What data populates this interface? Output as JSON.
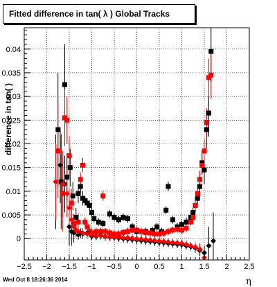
{
  "title": "Fitted difference in tan( λ )  Global Tracks",
  "footer": "Wed Oct  8 18:26:36 2014",
  "chart_data": {
    "type": "scatter",
    "xlabel": "η",
    "ylabel": "difference in tan( )",
    "xlim": [
      -2.5,
      2.5
    ],
    "ylim": [
      -0.0045,
      0.0445
    ],
    "xticks": [
      -2.5,
      -2,
      -1.5,
      -1,
      -0.5,
      0,
      0.5,
      1,
      1.5,
      2,
      2.5
    ],
    "xtick_labels": [
      "−2.5",
      "−2",
      "−1.5",
      "−1",
      "−0.5",
      "0",
      "0.5",
      "1",
      "1.5",
      "2",
      "2.5"
    ],
    "yticks": [
      0,
      0.005,
      0.01,
      0.015,
      0.02,
      0.025,
      0.03,
      0.035,
      0.04
    ],
    "ytick_labels": [
      "0",
      "0.005",
      "0.01",
      "0.015",
      "0.02",
      "0.025",
      "0.03",
      "0.035",
      "0.04"
    ],
    "grid": true,
    "colors": {
      "black": "#000000",
      "red": "#ff0000"
    },
    "series": [
      {
        "marker": "square",
        "color": "#000000",
        "points": [
          [
            -1.75,
            0.023,
            0.012
          ],
          [
            -1.68,
            0.012,
            0.01
          ],
          [
            -1.6,
            0.0325,
            0.0085
          ],
          [
            -1.55,
            0.013,
            0.005
          ],
          [
            -1.48,
            0.015,
            0.004
          ],
          [
            -1.42,
            0.009,
            0.003
          ],
          [
            -1.35,
            0.0045,
            0.002
          ],
          [
            -1.3,
            0.0095,
            0.002
          ],
          [
            -1.25,
            0.011,
            0.0015
          ],
          [
            -1.2,
            0.0085,
            0.0015
          ],
          [
            -1.15,
            0.008,
            0.001
          ],
          [
            -1.1,
            0.0075,
            0.001
          ],
          [
            -1.05,
            0.007,
            0.001
          ],
          [
            -1.0,
            0.0055,
            0.001
          ],
          [
            -0.95,
            0.0042,
            0.0008
          ],
          [
            -0.85,
            0.0035,
            0.0008
          ],
          [
            -0.75,
            0.0032,
            0.0008
          ],
          [
            -0.6,
            0.0052,
            0.0008
          ],
          [
            -0.5,
            0.0045,
            0.0008
          ],
          [
            -0.4,
            0.004,
            0.0008
          ],
          [
            -0.3,
            0.0045,
            0.0008
          ],
          [
            -0.2,
            0.0042,
            0.0008
          ],
          [
            -0.1,
            0.0025,
            0.0008
          ],
          [
            0.0,
            0.0015,
            0.0008
          ],
          [
            0.1,
            0.0015,
            0.0008
          ],
          [
            0.2,
            0.0015,
            0.0008
          ],
          [
            0.35,
            0.0017,
            0.0008
          ],
          [
            0.45,
            0.0025,
            0.0008
          ],
          [
            0.55,
            0.0015,
            0.0008
          ],
          [
            0.65,
            0.006,
            0.0008
          ],
          [
            0.7,
            0.011,
            0.001
          ],
          [
            0.8,
            0.004,
            0.0008
          ],
          [
            0.9,
            0.0025,
            0.0008
          ],
          [
            1.0,
            0.003,
            0.0008
          ],
          [
            1.1,
            0.0035,
            0.001
          ],
          [
            1.2,
            0.0045,
            0.001
          ],
          [
            1.25,
            0.0055,
            0.001
          ],
          [
            1.3,
            0.007,
            0.0015
          ],
          [
            1.35,
            0.0085,
            0.0015
          ],
          [
            1.4,
            0.011,
            0.002
          ],
          [
            1.45,
            0.016,
            0.0025
          ],
          [
            1.5,
            0.0145,
            0.003
          ],
          [
            1.55,
            0.023,
            0.004
          ],
          [
            1.6,
            0.0265,
            0.005
          ],
          [
            1.65,
            0.0395,
            0.0065
          ]
        ]
      },
      {
        "marker": "square",
        "color": "#ff0000",
        "points": [
          [
            -1.75,
            0.0185,
            0.01
          ],
          [
            -1.65,
            0.0095,
            0.008
          ],
          [
            -1.6,
            0.0255,
            0.006
          ],
          [
            -1.55,
            0.025,
            0.005
          ],
          [
            -1.5,
            0.0175,
            0.004
          ],
          [
            -1.45,
            0.0075,
            0.003
          ],
          [
            -1.4,
            0.0032,
            0.002
          ],
          [
            -1.3,
            0.0035,
            0.002
          ],
          [
            -1.25,
            0.0125,
            0.0015
          ],
          [
            -1.2,
            0.0155,
            0.0015
          ],
          [
            -1.15,
            0.0035,
            0.001
          ],
          [
            -1.1,
            0.0025,
            0.001
          ],
          [
            -1.05,
            0.0015,
            0.001
          ],
          [
            -1.0,
            0.0012,
            0.001
          ],
          [
            -0.9,
            0.0015,
            0.0008
          ],
          [
            -0.8,
            0.0015,
            0.0008
          ],
          [
            -0.75,
            0.009,
            0.001
          ],
          [
            -0.7,
            0.0015,
            0.0008
          ],
          [
            -0.6,
            0.0012,
            0.0008
          ],
          [
            -0.5,
            0.001,
            0.0008
          ],
          [
            -0.4,
            0.001,
            0.0008
          ],
          [
            -0.3,
            0.0013,
            0.0008
          ],
          [
            -0.2,
            0.0015,
            0.0008
          ],
          [
            -0.1,
            0.0018,
            0.0008
          ],
          [
            0.0,
            0.0018,
            0.0008
          ],
          [
            0.1,
            0.0015,
            0.0008
          ],
          [
            0.2,
            0.0013,
            0.0008
          ],
          [
            0.3,
            0.0012,
            0.0008
          ],
          [
            0.4,
            0.001,
            0.0008
          ],
          [
            0.5,
            0.001,
            0.0008
          ],
          [
            0.6,
            0.0012,
            0.0008
          ],
          [
            0.7,
            0.0015,
            0.0008
          ],
          [
            0.8,
            0.0018,
            0.0008
          ],
          [
            0.9,
            0.002,
            0.0008
          ],
          [
            1.0,
            0.0018,
            0.0008
          ],
          [
            1.1,
            0.0022,
            0.0008
          ],
          [
            1.2,
            0.0035,
            0.0008
          ],
          [
            1.25,
            0.0045,
            0.001
          ],
          [
            1.3,
            0.007,
            0.001
          ],
          [
            1.35,
            0.0095,
            0.0015
          ],
          [
            1.4,
            0.0125,
            0.0018
          ],
          [
            1.45,
            0.0155,
            0.002
          ],
          [
            1.5,
            0.0185,
            0.0025
          ],
          [
            1.55,
            0.0245,
            0.003
          ],
          [
            1.6,
            0.034,
            0.004
          ],
          [
            1.65,
            0.0345,
            0.005
          ]
        ]
      },
      {
        "marker": "diamond",
        "color": "#000000",
        "points": [
          [
            -1.8,
            0.012,
            0.01
          ],
          [
            -1.7,
            0.0155,
            0.008
          ],
          [
            -1.6,
            0.0115,
            0.006
          ],
          [
            -1.5,
            0.0025,
            0.004
          ],
          [
            -1.45,
            0.0015,
            0.003
          ],
          [
            -1.4,
            0.0012,
            0.002
          ],
          [
            -1.3,
            0.0008,
            0.001
          ],
          [
            -1.25,
            0.0012,
            0.001
          ],
          [
            -1.2,
            0.001,
            0.001
          ],
          [
            -1.1,
            0.0012,
            0.001
          ],
          [
            -1.0,
            0.0005,
            0.0008
          ],
          [
            -0.9,
            0.0005,
            0.0008
          ],
          [
            -0.8,
            0.0007,
            0.0008
          ],
          [
            -0.7,
            0.0004,
            0.0008
          ],
          [
            -0.6,
            0.0003,
            0.0008
          ],
          [
            -0.5,
            0.0002,
            0.0008
          ],
          [
            -0.4,
            0.0001,
            0.0008
          ],
          [
            -0.3,
            0.0,
            0.0008
          ],
          [
            -0.2,
            -0.0001,
            0.0008
          ],
          [
            -0.1,
            -0.0002,
            0.0008
          ],
          [
            0.0,
            -0.0003,
            0.0008
          ],
          [
            0.1,
            -0.0004,
            0.0008
          ],
          [
            0.2,
            -0.0005,
            0.0008
          ],
          [
            0.3,
            -0.0006,
            0.0008
          ],
          [
            0.4,
            -0.0007,
            0.0008
          ],
          [
            0.5,
            -0.0008,
            0.0008
          ],
          [
            0.6,
            -0.0009,
            0.0008
          ],
          [
            0.7,
            -0.001,
            0.0008
          ],
          [
            0.8,
            -0.0011,
            0.0008
          ],
          [
            0.9,
            -0.0012,
            0.0008
          ],
          [
            1.0,
            -0.0013,
            0.0008
          ],
          [
            1.1,
            -0.0015,
            0.0008
          ],
          [
            1.2,
            -0.0017,
            0.0008
          ],
          [
            1.3,
            -0.002,
            0.001
          ],
          [
            1.4,
            -0.0025,
            0.0012
          ],
          [
            1.5,
            -0.003,
            0.0015
          ],
          [
            1.6,
            -0.0015,
            0.004
          ],
          [
            1.7,
            -0.0005,
            0.006
          ]
        ]
      },
      {
        "marker": "diamond",
        "color": "#ff0000",
        "points": [
          [
            -1.8,
            0.012,
            0.008
          ],
          [
            -1.65,
            0.0115,
            0.007
          ],
          [
            -1.55,
            0.0095,
            0.005
          ],
          [
            -1.5,
            0.0065,
            0.004
          ],
          [
            -1.45,
            0.004,
            0.003
          ],
          [
            -1.4,
            0.0025,
            0.002
          ],
          [
            -1.35,
            0.0018,
            0.0015
          ],
          [
            -1.3,
            0.0015,
            0.001
          ],
          [
            -1.2,
            0.0012,
            0.001
          ],
          [
            -1.1,
            0.001,
            0.001
          ],
          [
            -1.0,
            0.0008,
            0.0008
          ],
          [
            -0.9,
            0.0007,
            0.0008
          ],
          [
            -0.8,
            0.0006,
            0.0008
          ],
          [
            -0.7,
            0.0005,
            0.0008
          ],
          [
            -0.6,
            0.0004,
            0.0008
          ],
          [
            -0.5,
            0.0003,
            0.0008
          ],
          [
            -0.4,
            0.0003,
            0.0008
          ],
          [
            -0.3,
            0.0002,
            0.0008
          ],
          [
            -0.2,
            0.0002,
            0.0008
          ],
          [
            -0.1,
            0.0001,
            0.0008
          ],
          [
            0.0,
            0.0,
            0.0008
          ],
          [
            0.1,
            -0.0001,
            0.0008
          ],
          [
            0.2,
            -0.0002,
            0.0008
          ],
          [
            0.3,
            -0.0003,
            0.0008
          ],
          [
            0.4,
            -0.0004,
            0.0008
          ],
          [
            0.5,
            -0.0005,
            0.0008
          ],
          [
            0.6,
            -0.0006,
            0.0008
          ],
          [
            0.7,
            -0.0007,
            0.0008
          ],
          [
            0.8,
            -0.0008,
            0.0008
          ],
          [
            0.9,
            -0.0009,
            0.0008
          ],
          [
            1.0,
            -0.001,
            0.0008
          ],
          [
            1.1,
            -0.0012,
            0.0008
          ],
          [
            1.2,
            -0.0015,
            0.0008
          ],
          [
            1.3,
            -0.0018,
            0.001
          ],
          [
            1.4,
            -0.0022,
            0.0012
          ],
          [
            1.5,
            -0.004,
            0.0015
          ]
        ]
      }
    ]
  }
}
